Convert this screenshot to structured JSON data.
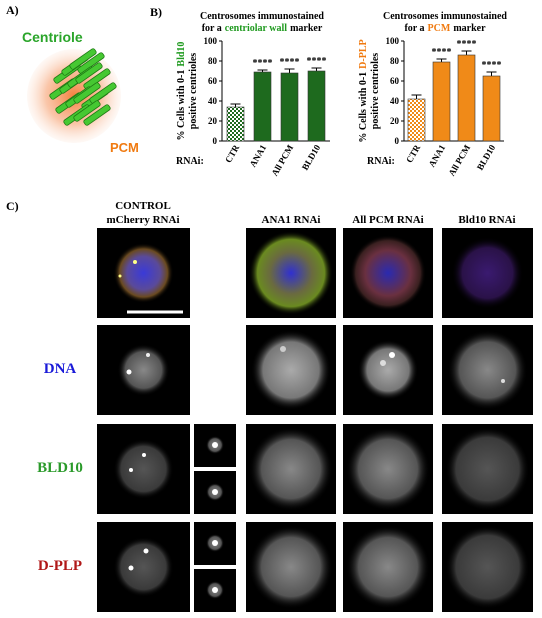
{
  "panel_a": {
    "label": "A)",
    "centriole": "Centriole",
    "pcm": "PCM"
  },
  "panel_b": {
    "label": "B)"
  },
  "chart_data": [
    {
      "type": "bar",
      "title": [
        [
          "Centrosomes immunostained"
        ],
        [
          "for a",
          "centriolar wall",
          "marker"
        ]
      ],
      "ylabel": [
        [
          "% Cells with 0-1",
          "Bld10"
        ],
        [
          "positive centrioles"
        ]
      ],
      "xlabel": "RNAi:",
      "categories": [
        "CTR",
        "ANA1",
        "All PCM",
        "BLD10"
      ],
      "values": [
        34,
        69,
        68,
        70
      ],
      "errors": [
        3,
        2,
        4,
        3
      ],
      "significance": [
        null,
        "****",
        "****",
        "****"
      ],
      "color": "#1e6a1e",
      "accent_color": "#1f9a1f",
      "bar_fills": [
        "checker",
        "solid",
        "solid",
        "solid"
      ],
      "ylim": [
        0,
        100
      ],
      "yticks": [
        0,
        20,
        40,
        60,
        80,
        100
      ]
    },
    {
      "type": "bar",
      "title": [
        [
          "Centrosomes immunostained"
        ],
        [
          "for a",
          "PCM",
          "marker"
        ]
      ],
      "ylabel": [
        [
          "% Cells with 0-1",
          "D-PLP"
        ],
        [
          "positive centrioles"
        ]
      ],
      "xlabel": "RNAi:",
      "categories": [
        "CTR",
        "ANA1",
        "All PCM",
        "BLD10"
      ],
      "values": [
        42,
        79,
        86,
        65
      ],
      "errors": [
        4,
        3,
        4,
        4
      ],
      "significance": [
        null,
        "****",
        "****",
        "****"
      ],
      "color": "#f08a18",
      "accent_color": "#f07a10",
      "bar_fills": [
        "checker",
        "solid",
        "solid",
        "solid"
      ],
      "ylim": [
        0,
        100
      ],
      "yticks": [
        0,
        20,
        40,
        60,
        80,
        100
      ]
    }
  ],
  "panel_c": {
    "label": "C)",
    "columns": [
      [
        "CONTROL",
        "mCherry RNAi"
      ],
      [
        "ANA1 RNAi"
      ],
      [
        "All PCM RNAi"
      ],
      [
        "Bld10 RNAi"
      ]
    ],
    "rows": [
      {
        "label": "DNA",
        "color": "#1a1ad8"
      },
      {
        "label": "BLD10",
        "color": "#2a9a2a"
      },
      {
        "label": "D-PLP",
        "color": "#b01818"
      }
    ]
  }
}
